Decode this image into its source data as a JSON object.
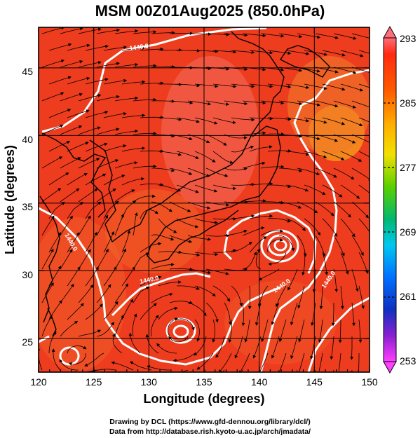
{
  "title": "MSM 00Z01Aug2025 (850.0hPa)",
  "map": {
    "x_axis_label": "Longitude (degrees)",
    "y_axis_label": "Latitude  (degrees)",
    "lon_range": [
      120,
      150
    ],
    "lat_range": [
      22.5,
      48
    ],
    "lon_ticks": [
      "120",
      "125",
      "130",
      "135",
      "140",
      "145",
      "150"
    ],
    "lat_ticks": [
      "25",
      "30",
      "35",
      "40",
      "45"
    ],
    "contour_labels": [
      "1440.0",
      "1440.0",
      "1440.0",
      "1440.0",
      "1440.0"
    ],
    "colors": {
      "field_base": "#ee3c1e",
      "field_warm": "#f46e3a",
      "contour": "#ffffff",
      "streamline": "#000000"
    }
  },
  "colorbar": {
    "ticks": [
      "293",
      "285",
      "277",
      "269",
      "261",
      "253"
    ],
    "max": 293,
    "min": 253,
    "colors": [
      "#ff6d7a",
      "#ff2a10",
      "#ff8a00",
      "#f2e000",
      "#5ad000",
      "#00b870",
      "#00c8f0",
      "#0070ff",
      "#1030c0",
      "#8a20d0",
      "#ff40ff"
    ]
  },
  "credits": {
    "line1": "Drawing by DCL (https://www.gfd-dennou.org/library/dcl/)",
    "line2": "Data from http://database.rish.kyoto-u.ac.jp/arch/jmadata/"
  }
}
